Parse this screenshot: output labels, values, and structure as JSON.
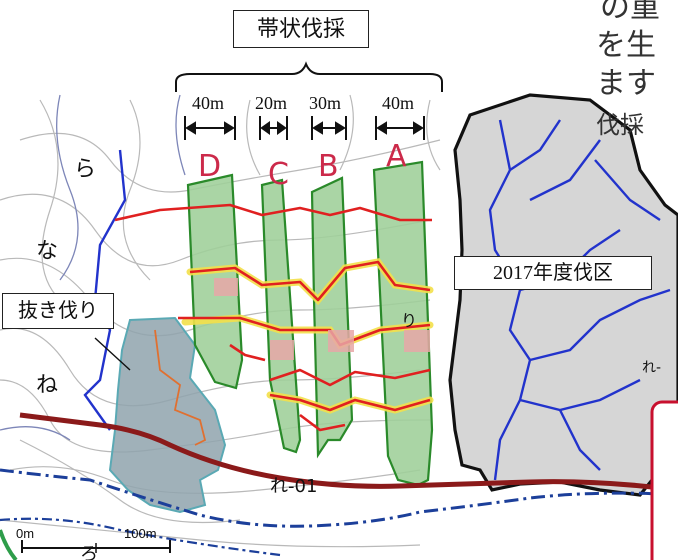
{
  "title_label": "帯状伐採",
  "widths": [
    "40m",
    "20m",
    "30m",
    "40m"
  ],
  "strip_letters": [
    "D",
    "C",
    "B",
    "A"
  ],
  "area_labels": {
    "selective": "抜き伐り",
    "zone2017": "2017年度伐区"
  },
  "place_labels": {
    "ra": "ら",
    "na": "な",
    "ne": "ね",
    "ri": "り",
    "re01": "れ-01",
    "re_right": "れ-",
    "ro": "ろ"
  },
  "scale": {
    "left": "0m",
    "right": "100m"
  },
  "cut_text": [
    "の重",
    "を生",
    "ます",
    "伐採"
  ],
  "colors": {
    "strip_fill": "#9ecf98",
    "strip_edge": "#2a8a2a",
    "route": "#e02020",
    "highlight": "#f3e04a",
    "river": "#2233cc",
    "road": "#8b1a1a",
    "zone_fill": "#d6d6d6",
    "selective_fill": "#8fa3ad",
    "callout": "#c8102e"
  }
}
